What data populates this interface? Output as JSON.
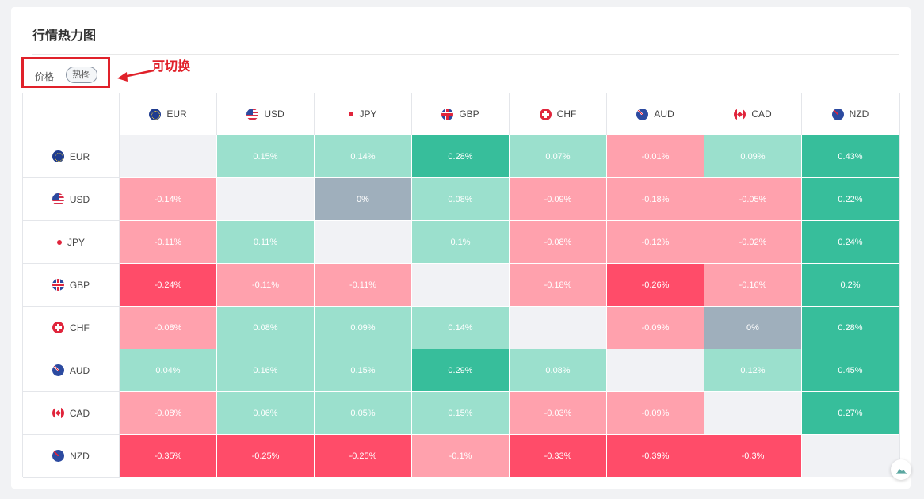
{
  "panel": {
    "title": "行情热力图",
    "toggle": {
      "price_label": "价格",
      "heat_label": "热图"
    },
    "annotation": "可切换"
  },
  "colors": {
    "strong_positive": "#37be9b",
    "positive": "#9be0cd",
    "neutral": "#9fafbc",
    "negative": "#ffa1ad",
    "strong_negative": "#ff4c69",
    "empty": "#f1f2f5",
    "annotation_red": "#e0212a"
  },
  "currencies": [
    {
      "code": "EUR",
      "icon": "eu-flag-icon"
    },
    {
      "code": "USD",
      "icon": "us-flag-icon"
    },
    {
      "code": "JPY",
      "icon": "jp-flag-icon"
    },
    {
      "code": "GBP",
      "icon": "uk-flag-icon"
    },
    {
      "code": "CHF",
      "icon": "swiss-flag-icon"
    },
    {
      "code": "AUD",
      "icon": "au-flag-icon"
    },
    {
      "code": "CAD",
      "icon": "ca-flag-icon"
    },
    {
      "code": "NZD",
      "icon": "nz-flag-icon"
    }
  ],
  "matrix": [
    [
      "",
      "0.15%",
      "0.14%",
      "0.28%",
      "0.07%",
      "-0.01%",
      "0.09%",
      "0.43%"
    ],
    [
      "-0.14%",
      "",
      "0%",
      "0.08%",
      "-0.09%",
      "-0.18%",
      "-0.05%",
      "0.22%"
    ],
    [
      "-0.11%",
      "0.11%",
      "",
      "0.1%",
      "-0.08%",
      "-0.12%",
      "-0.02%",
      "0.24%"
    ],
    [
      "-0.24%",
      "-0.11%",
      "-0.11%",
      "",
      "-0.18%",
      "-0.26%",
      "-0.16%",
      "0.2%"
    ],
    [
      "-0.08%",
      "0.08%",
      "0.09%",
      "0.14%",
      "",
      "-0.09%",
      "0%",
      "0.28%"
    ],
    [
      "0.04%",
      "0.16%",
      "0.15%",
      "0.29%",
      "0.08%",
      "",
      "0.12%",
      "0.45%"
    ],
    [
      "-0.08%",
      "0.06%",
      "0.05%",
      "0.15%",
      "-0.03%",
      "-0.09%",
      "",
      "0.27%"
    ],
    [
      "-0.35%",
      "-0.25%",
      "-0.25%",
      "-0.1%",
      "-0.33%",
      "-0.39%",
      "-0.3%",
      ""
    ]
  ],
  "widget": {
    "icon": "cloud-icon"
  }
}
